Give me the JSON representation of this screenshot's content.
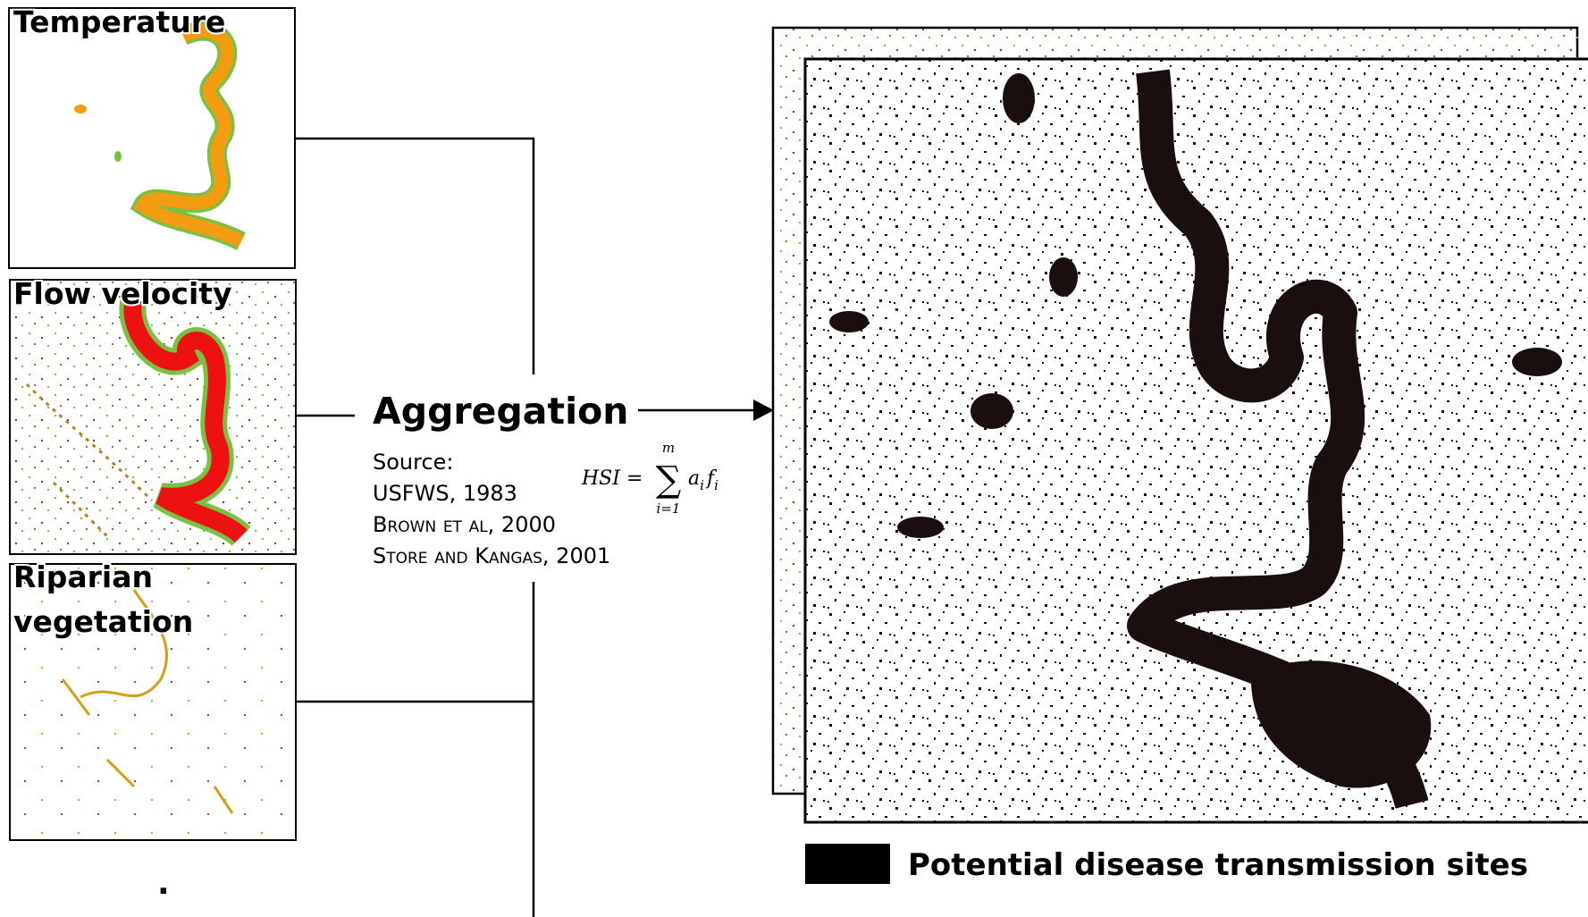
{
  "panels": [
    {
      "label_lines": [
        "Temperature"
      ]
    },
    {
      "label_lines": [
        "Flow velocity"
      ]
    },
    {
      "label_lines": [
        "Riparian",
        "vegetation"
      ]
    }
  ],
  "ellipsis": ".",
  "aggregation": {
    "title": "Aggregation",
    "source": [
      "Source:",
      "USFWS, 1983",
      "Brown et al, 2000",
      "Store and Kangas, 2001"
    ]
  },
  "formula": {
    "lhs": "HSI =",
    "upper": "m",
    "lower": "i=1",
    "symbol": "∑",
    "terms": [
      "a",
      "i",
      "f",
      "i"
    ]
  },
  "legend": {
    "label": "Potential disease transmission sites"
  }
}
